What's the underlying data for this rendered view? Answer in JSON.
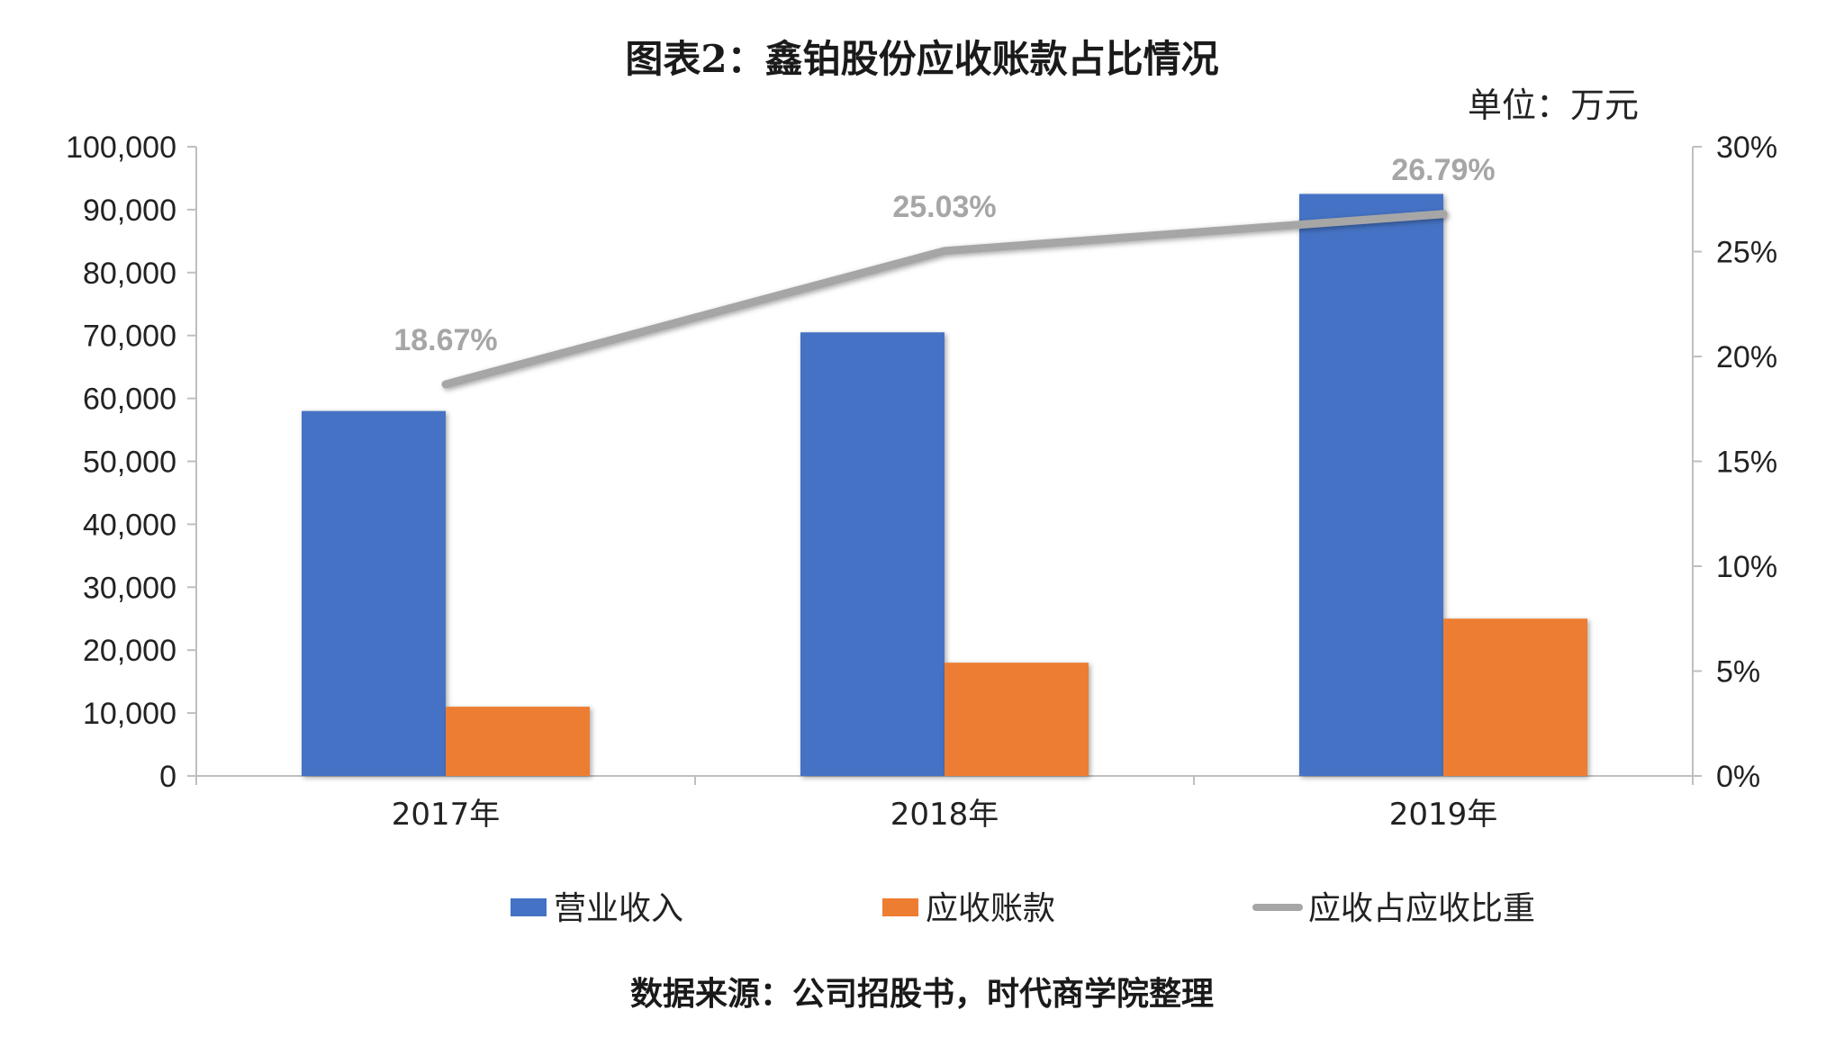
{
  "title": "图表2：鑫铂股份应收账款占比情况",
  "unit": "单位：万元",
  "source": "数据来源：公司招股书，时代商学院整理",
  "colors": {
    "revenue": "#4472c4",
    "receivables": "#ed7d31",
    "ratio": "#a6a6a6",
    "axis": "#bfbfbf"
  },
  "chart_data": {
    "type": "bar",
    "categories": [
      "2017年",
      "2018年",
      "2019年"
    ],
    "series": [
      {
        "name": "营业收入",
        "type": "bar",
        "axis": "left",
        "values": [
          58000,
          70500,
          92500
        ]
      },
      {
        "name": "应收账款",
        "type": "bar",
        "axis": "left",
        "values": [
          11000,
          18000,
          25000
        ]
      },
      {
        "name": "应收占应收比重",
        "type": "line",
        "axis": "right",
        "values": [
          18.67,
          25.03,
          26.79
        ],
        "labels": [
          "18.67%",
          "25.03%",
          "26.79%"
        ]
      }
    ],
    "ylim": [
      0,
      100000
    ],
    "y_ticks": [
      "0",
      "10,000",
      "20,000",
      "30,000",
      "40,000",
      "50,000",
      "60,000",
      "70,000",
      "80,000",
      "90,000",
      "100,000"
    ],
    "y2lim": [
      0,
      30
    ],
    "y2_ticks": [
      "0%",
      "5%",
      "10%",
      "15%",
      "20%",
      "25%",
      "30%"
    ],
    "legend": "bottom",
    "grid": false
  }
}
